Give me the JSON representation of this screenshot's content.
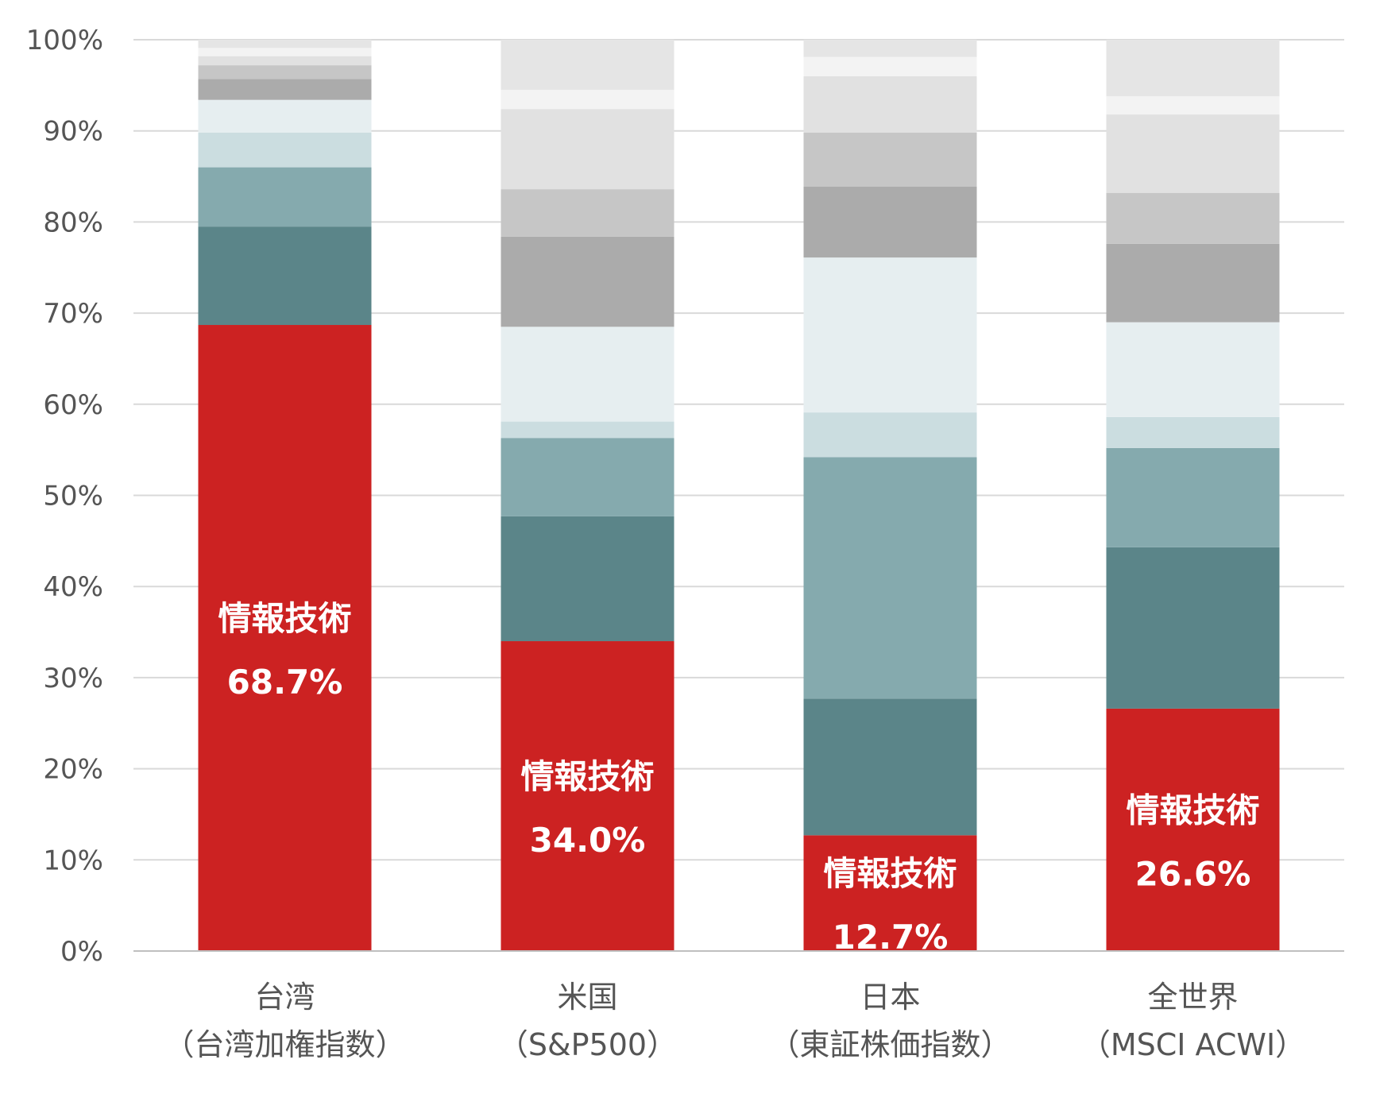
{
  "chart_data": {
    "type": "bar",
    "stacked": true,
    "percent_stacked": true,
    "title": "",
    "xlabel": "",
    "ylabel": "",
    "ylim": [
      0,
      100
    ],
    "y_ticks": [
      0,
      10,
      20,
      30,
      40,
      50,
      60,
      70,
      80,
      90,
      100
    ],
    "y_tick_suffix": "%",
    "grid": true,
    "legend": "none",
    "categories": [
      {
        "line1": "台湾",
        "line2": "（台湾加権指数）"
      },
      {
        "line1": "米国",
        "line2": "（S&P500）"
      },
      {
        "line1": "日本",
        "line2": "（東証株価指数）"
      },
      {
        "line1": "全世界",
        "line2": "（MSCI ACWI）"
      }
    ],
    "series": [
      {
        "color": "#cc2222",
        "values": [
          68.7,
          34.0,
          12.7,
          26.6
        ]
      },
      {
        "color": "#5b8589",
        "values": [
          10.8,
          13.7,
          15.0,
          17.7
        ]
      },
      {
        "color": "#85aaae",
        "values": [
          6.5,
          8.6,
          26.5,
          10.9
        ]
      },
      {
        "color": "#cbdde0",
        "values": [
          3.8,
          1.8,
          4.9,
          3.4
        ]
      },
      {
        "color": "#e6eef0",
        "values": [
          3.6,
          10.4,
          17.0,
          10.4
        ]
      },
      {
        "color": "#ababab",
        "values": [
          2.3,
          9.9,
          7.8,
          8.6
        ]
      },
      {
        "color": "#c6c6c6",
        "values": [
          1.5,
          5.2,
          5.9,
          5.6
        ]
      },
      {
        "color": "#e1e1e1",
        "values": [
          1.0,
          8.8,
          6.2,
          8.6
        ]
      },
      {
        "color": "#f3f3f3",
        "values": [
          0.9,
          2.1,
          2.1,
          2.0
        ]
      },
      {
        "color": "#e5e5e5",
        "values": [
          0.9,
          5.5,
          1.9,
          6.2
        ]
      }
    ],
    "data_labels": [
      {
        "series_index": 0,
        "name": "情報技術",
        "value_text": "68.7%"
      },
      {
        "series_index": 0,
        "name": "情報技術",
        "value_text": "34.0%"
      },
      {
        "series_index": 0,
        "name": "情報技術",
        "value_text": "12.7%"
      },
      {
        "series_index": 0,
        "name": "情報技術",
        "value_text": "26.6%"
      }
    ]
  }
}
